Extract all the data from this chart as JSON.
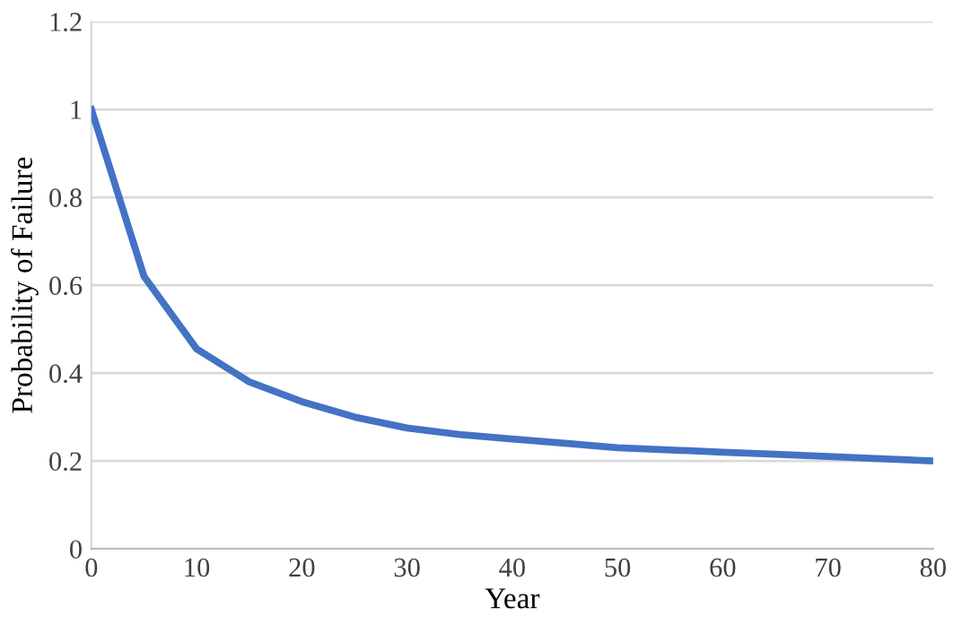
{
  "chart_data": {
    "type": "line",
    "xlabel": "Year",
    "ylabel": "Probability of Failure",
    "x": [
      0,
      5,
      10,
      15,
      20,
      25,
      30,
      35,
      40,
      45,
      50,
      55,
      60,
      65,
      70,
      75,
      80
    ],
    "series": [
      {
        "color": "#4472c4",
        "values": [
          1.0,
          0.62,
          0.455,
          0.38,
          0.335,
          0.3,
          0.275,
          0.26,
          0.25,
          0.24,
          0.23,
          0.225,
          0.22,
          0.215,
          0.21,
          0.205,
          0.2
        ]
      }
    ],
    "xlim": [
      0,
      80
    ],
    "xticks": [
      0,
      10,
      20,
      30,
      40,
      50,
      60,
      70,
      80
    ],
    "ylim": [
      0,
      1.2
    ],
    "yticks": [
      0,
      0.2,
      0.4,
      0.6,
      0.8,
      1,
      1.2
    ],
    "grid": "y",
    "marker": "none",
    "line_style": "solid",
    "legend": false
  }
}
